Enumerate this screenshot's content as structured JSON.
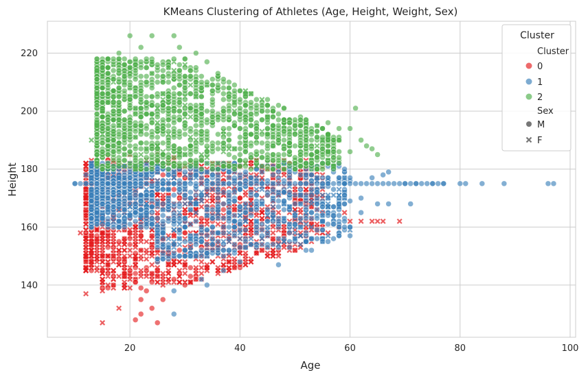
{
  "chart_data": {
    "type": "scatter",
    "title": "KMeans Clustering of Athletes (Age, Height, Weight, Sex)",
    "xlabel": "Age",
    "ylabel": "Height",
    "xlim": [
      5,
      101
    ],
    "ylim": [
      122,
      231
    ],
    "xticks": [
      20,
      40,
      60,
      80,
      100
    ],
    "yticks": [
      140,
      160,
      180,
      200,
      220
    ],
    "grid": true,
    "legend": {
      "title": "Cluster",
      "placement": "top-right",
      "hue_header": "Cluster",
      "style_header": "Sex",
      "entries": [
        {
          "label": "0",
          "color": "#e41a1c"
        },
        {
          "label": "1",
          "color": "#377eb8"
        },
        {
          "label": "2",
          "color": "#4daf4a"
        }
      ],
      "style_entries": [
        {
          "label": "M",
          "marker": "circle"
        },
        {
          "label": "F",
          "marker": "x"
        }
      ]
    },
    "series": [
      {
        "name": "0",
        "color": "#e41a1c",
        "region_points": [
          {
            "x": 15,
            "y": 127,
            "sex": "F"
          },
          {
            "x": 21,
            "y": 128,
            "sex": "M"
          },
          {
            "x": 25,
            "y": 127,
            "sex": "M"
          },
          {
            "x": 22,
            "y": 130,
            "sex": "M"
          },
          {
            "x": 24,
            "y": 132,
            "sex": "M"
          },
          {
            "x": 22,
            "y": 135,
            "sex": "M"
          },
          {
            "x": 26,
            "y": 135,
            "sex": "M"
          },
          {
            "x": 23,
            "y": 138,
            "sex": "M"
          },
          {
            "x": 30,
            "y": 140,
            "sex": "M"
          },
          {
            "x": 12,
            "y": 137,
            "sex": "F"
          },
          {
            "x": 18,
            "y": 132,
            "sex": "F"
          },
          {
            "x": 14,
            "y": 145,
            "sex": "F"
          },
          {
            "x": 11,
            "y": 158,
            "sex": "F"
          },
          {
            "x": 13,
            "y": 170,
            "sex": "F"
          },
          {
            "x": 12,
            "y": 175,
            "sex": "F"
          },
          {
            "x": 13,
            "y": 183,
            "sex": "F"
          },
          {
            "x": 16,
            "y": 184,
            "sex": "F"
          },
          {
            "x": 20,
            "y": 185,
            "sex": "F"
          },
          {
            "x": 25,
            "y": 186,
            "sex": "F"
          },
          {
            "x": 28,
            "y": 184,
            "sex": "F"
          },
          {
            "x": 33,
            "y": 183,
            "sex": "M"
          },
          {
            "x": 40,
            "y": 166,
            "sex": "M"
          },
          {
            "x": 45,
            "y": 158,
            "sex": "F"
          },
          {
            "x": 48,
            "y": 160,
            "sex": "F"
          },
          {
            "x": 52,
            "y": 158,
            "sex": "F"
          },
          {
            "x": 54,
            "y": 160,
            "sex": "F"
          },
          {
            "x": 56,
            "y": 158,
            "sex": "F"
          },
          {
            "x": 58,
            "y": 160,
            "sex": "F"
          },
          {
            "x": 59,
            "y": 165,
            "sex": "F"
          },
          {
            "x": 60,
            "y": 162,
            "sex": "F"
          },
          {
            "x": 62,
            "y": 162,
            "sex": "F"
          },
          {
            "x": 64,
            "y": 162,
            "sex": "F"
          },
          {
            "x": 65,
            "y": 162,
            "sex": "F"
          },
          {
            "x": 66,
            "y": 162,
            "sex": "F"
          },
          {
            "x": 69,
            "y": 162,
            "sex": "F"
          },
          {
            "x": 50,
            "y": 157,
            "sex": "F"
          },
          {
            "x": 44,
            "y": 156,
            "sex": "F"
          },
          {
            "x": 42,
            "y": 154,
            "sex": "F"
          },
          {
            "x": 38,
            "y": 156,
            "sex": "F"
          }
        ]
      },
      {
        "name": "1",
        "color": "#377eb8",
        "region_points": [
          {
            "x": 10,
            "y": 175,
            "sex": "M"
          },
          {
            "x": 12,
            "y": 175,
            "sex": "M"
          },
          {
            "x": 12,
            "y": 178,
            "sex": "M"
          },
          {
            "x": 28,
            "y": 130,
            "sex": "M"
          },
          {
            "x": 28,
            "y": 138,
            "sex": "M"
          },
          {
            "x": 33,
            "y": 142,
            "sex": "M"
          },
          {
            "x": 34,
            "y": 140,
            "sex": "M"
          },
          {
            "x": 37,
            "y": 145,
            "sex": "M"
          },
          {
            "x": 40,
            "y": 148,
            "sex": "M"
          },
          {
            "x": 47,
            "y": 147,
            "sex": "M"
          },
          {
            "x": 52,
            "y": 152,
            "sex": "M"
          },
          {
            "x": 53,
            "y": 152,
            "sex": "M"
          },
          {
            "x": 55,
            "y": 155,
            "sex": "M"
          },
          {
            "x": 58,
            "y": 157,
            "sex": "M"
          },
          {
            "x": 60,
            "y": 160,
            "sex": "M"
          },
          {
            "x": 62,
            "y": 165,
            "sex": "M"
          },
          {
            "x": 65,
            "y": 168,
            "sex": "M"
          },
          {
            "x": 67,
            "y": 168,
            "sex": "M"
          },
          {
            "x": 71,
            "y": 168,
            "sex": "M"
          },
          {
            "x": 62,
            "y": 170,
            "sex": "M"
          },
          {
            "x": 64,
            "y": 177,
            "sex": "M"
          },
          {
            "x": 66,
            "y": 178,
            "sex": "M"
          },
          {
            "x": 67,
            "y": 179,
            "sex": "M"
          },
          {
            "x": 70,
            "y": 175,
            "sex": "M"
          },
          {
            "x": 72,
            "y": 175,
            "sex": "M"
          },
          {
            "x": 75,
            "y": 175,
            "sex": "M"
          },
          {
            "x": 77,
            "y": 175,
            "sex": "M"
          },
          {
            "x": 80,
            "y": 175,
            "sex": "M"
          },
          {
            "x": 81,
            "y": 175,
            "sex": "M"
          },
          {
            "x": 84,
            "y": 175,
            "sex": "M"
          },
          {
            "x": 88,
            "y": 175,
            "sex": "M"
          },
          {
            "x": 96,
            "y": 175,
            "sex": "M"
          },
          {
            "x": 97,
            "y": 175,
            "sex": "M"
          }
        ]
      },
      {
        "name": "2",
        "color": "#4daf4a",
        "region_points": [
          {
            "x": 20,
            "y": 226,
            "sex": "M"
          },
          {
            "x": 24,
            "y": 226,
            "sex": "M"
          },
          {
            "x": 28,
            "y": 226,
            "sex": "M"
          },
          {
            "x": 22,
            "y": 222,
            "sex": "M"
          },
          {
            "x": 29,
            "y": 222,
            "sex": "M"
          },
          {
            "x": 18,
            "y": 220,
            "sex": "M"
          },
          {
            "x": 32,
            "y": 220,
            "sex": "M"
          },
          {
            "x": 16,
            "y": 215,
            "sex": "M"
          },
          {
            "x": 34,
            "y": 217,
            "sex": "M"
          },
          {
            "x": 36,
            "y": 213,
            "sex": "M"
          },
          {
            "x": 38,
            "y": 210,
            "sex": "M"
          },
          {
            "x": 40,
            "y": 207,
            "sex": "M"
          },
          {
            "x": 42,
            "y": 203,
            "sex": "M"
          },
          {
            "x": 44,
            "y": 200,
            "sex": "M"
          },
          {
            "x": 46,
            "y": 198,
            "sex": "M"
          },
          {
            "x": 48,
            "y": 197,
            "sex": "M"
          },
          {
            "x": 50,
            "y": 195,
            "sex": "M"
          },
          {
            "x": 52,
            "y": 197,
            "sex": "M"
          },
          {
            "x": 54,
            "y": 195,
            "sex": "M"
          },
          {
            "x": 56,
            "y": 196,
            "sex": "M"
          },
          {
            "x": 58,
            "y": 194,
            "sex": "M"
          },
          {
            "x": 60,
            "y": 194,
            "sex": "M"
          },
          {
            "x": 61,
            "y": 201,
            "sex": "M"
          },
          {
            "x": 62,
            "y": 190,
            "sex": "M"
          },
          {
            "x": 63,
            "y": 188,
            "sex": "M"
          },
          {
            "x": 64,
            "y": 187,
            "sex": "M"
          },
          {
            "x": 65,
            "y": 185,
            "sex": "M"
          },
          {
            "x": 60,
            "y": 186,
            "sex": "M"
          },
          {
            "x": 57,
            "y": 184,
            "sex": "M"
          },
          {
            "x": 17,
            "y": 204,
            "sex": "F"
          },
          {
            "x": 15,
            "y": 200,
            "sex": "F"
          },
          {
            "x": 14,
            "y": 195,
            "sex": "F"
          },
          {
            "x": 13,
            "y": 190,
            "sex": "F"
          }
        ]
      }
    ]
  }
}
